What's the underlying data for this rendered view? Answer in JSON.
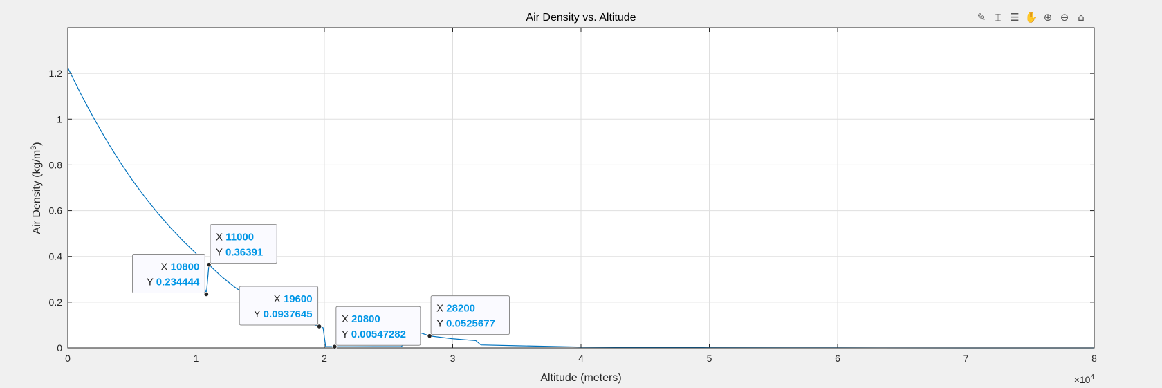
{
  "toolbar": {
    "icons": [
      "brush-icon",
      "data-tip-icon",
      "insert-legend-icon",
      "pan-hand-icon",
      "zoom-in-icon",
      "zoom-out-icon",
      "home-icon"
    ],
    "glyphs": [
      "✎",
      "⌶",
      "☰",
      "✋",
      "⊕",
      "⊖",
      "⌂"
    ]
  },
  "chart_data": {
    "type": "line",
    "title": "Air Density vs. Altitude",
    "xlabel": "Altitude (meters)",
    "ylabel_main": "Air Density (kg/m",
    "ylabel_sup": "3",
    "ylabel_end": ")",
    "x_multiplier_base": "×10",
    "x_multiplier_exp": "4",
    "xlim": [
      0,
      80000
    ],
    "ylim": [
      0,
      1.4
    ],
    "xticks": [
      0,
      10000,
      20000,
      30000,
      40000,
      50000,
      60000,
      70000,
      80000
    ],
    "xtick_labels": [
      "0",
      "1",
      "2",
      "3",
      "4",
      "5",
      "6",
      "7",
      "8"
    ],
    "yticks": [
      0,
      0.2,
      0.4,
      0.6,
      0.8,
      1.0,
      1.2
    ],
    "ytick_labels": [
      "0",
      "0.2",
      "0.4",
      "0.6",
      "0.8",
      "1",
      "1.2"
    ],
    "grid": true,
    "line_color": "#0072bd",
    "series": [
      {
        "x": [
          0,
          1000,
          2000,
          3000,
          4000,
          5000,
          6000,
          7000,
          8000,
          9000,
          10000,
          10800,
          11000,
          12000,
          13000,
          14000,
          15000,
          16000,
          17000,
          18000,
          19000,
          19600,
          19900,
          20100,
          20800,
          22000,
          24000,
          26000,
          27000,
          28200,
          30000,
          31800,
          32200,
          35000,
          40000,
          50000,
          60000,
          70000,
          80000
        ],
        "y": [
          1.225,
          1.112,
          1.007,
          0.909,
          0.819,
          0.736,
          0.66,
          0.59,
          0.526,
          0.467,
          0.413,
          0.234444,
          0.36391,
          0.311,
          0.266,
          0.228,
          0.195,
          0.166,
          0.142,
          0.121,
          0.104,
          0.0937645,
          0.088,
          0.006,
          0.00547282,
          0.0055,
          0.0056,
          0.0057,
          0.075,
          0.0525677,
          0.04,
          0.032,
          0.013,
          0.0095,
          0.004,
          0.001,
          0.0003,
          0.0001,
          2e-05
        ]
      }
    ],
    "datatips": [
      {
        "x": 10800,
        "y": 0.234444,
        "x_text": "10800",
        "y_text": "0.234444",
        "placement": "left",
        "align": "right"
      },
      {
        "x": 11000,
        "y": 0.36391,
        "x_text": "11000",
        "y_text": "0.36391",
        "placement": "right",
        "align": "left"
      },
      {
        "x": 19600,
        "y": 0.0937645,
        "x_text": "19600",
        "y_text": "0.0937645",
        "placement": "left",
        "align": "right"
      },
      {
        "x": 20800,
        "y": 0.00547282,
        "x_text": "20800",
        "y_text": "0.00547282",
        "placement": "right",
        "align": "left"
      },
      {
        "x": 28200,
        "y": 0.0525677,
        "x_text": "28200",
        "y_text": "0.0525677",
        "placement": "right",
        "align": "left"
      }
    ],
    "tip_label_x": "X",
    "tip_label_y": "Y",
    "tip_value_color": "#0096e6"
  }
}
